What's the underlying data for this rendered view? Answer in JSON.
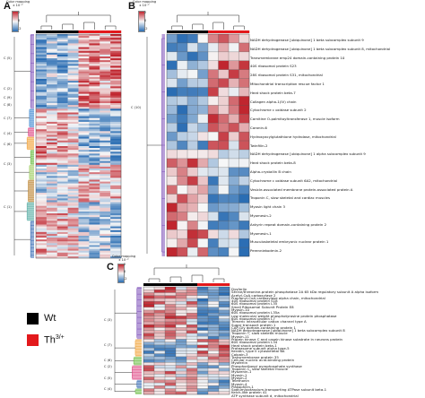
{
  "panels": {
    "A": {
      "letter": "A",
      "color_title": "Color mapping",
      "color_subtitle": "x 10⁻²",
      "cb_ticks": [
        "2",
        "0",
        "-2"
      ],
      "clusters": [
        {
          "label": "C (5)",
          "color": "#7b4fb8"
        },
        {
          "label": "C (2)",
          "color": "#4a8fd4"
        },
        {
          "label": "C (9)",
          "color": "#e0508a"
        },
        {
          "label": "C (8)",
          "color": "#f2a640"
        },
        {
          "label": "C (7)",
          "color": "#6fbf4a"
        },
        {
          "label": "C (4)",
          "color": "#a4d06a"
        },
        {
          "label": "C (6)",
          "color": "#bf8a3c"
        },
        {
          "label": "C (3)",
          "color": "#5fb0a8"
        },
        {
          "label": "C (1)",
          "color": "#3d6fb6"
        }
      ]
    },
    "B": {
      "letter": "B",
      "color_title": "Color mapping",
      "color_subtitle": "x 10⁻²",
      "cb_ticks": [
        "2",
        "0",
        "-2"
      ],
      "clusters": [
        {
          "label": "C (10)",
          "color": "#7b4fb8"
        }
      ],
      "genes": [
        "NADH dehydrogenase [ubiquinone] 1 beta subcomplex subunit 9",
        "NADH dehydrogenase [ubiquinone] 1 beta subcomplex subunit 8, mitochondrial",
        "Transmembrane emp24 domain-containing protein 10",
        "40S ribosomal protein S23",
        "28S ribosomal protein S31, mitochondrial",
        "Mitochondrial transcription rescue factor 1",
        "Heat shock protein beta-7",
        "Collagen alpha-1(IV) chain",
        "Cytochrome c oxidase subunit 2",
        "Carnitine O-palmitoyltransferase 1, muscle isoform",
        "Coronin-6",
        "Hydroxyacylglutathione hydrolase, mitochondrial",
        "Twinfilin-2",
        "NADH dehydrogenase [ubiquinone] 1 alpha subcomplex subunit 9",
        "Heat shock protein beta-8",
        "Alpha-crystallin B chain",
        "Cytochrome c oxidase subunit 6A2, mitochondrial",
        "Vesicle-associated membrane protein-associated protein A",
        "Troponin C, slow skeletal and cardiac muscles",
        "Myosin light chain 3",
        "Myomesin-2",
        "Ankyrin repeat domain-containing protein 2",
        "Myomesin-1",
        "Musculoskeletal embryonic nuclear protein 1",
        "Perenniekodmin-2"
      ]
    },
    "C": {
      "letter": "C",
      "color_title": "Color mapping",
      "color_subtitle": "x 10⁻²",
      "cb_ticks": [
        "2",
        "0",
        "-2"
      ],
      "clusters": [
        {
          "label": "C (3)",
          "color": "#7b4fb8"
        },
        {
          "label": "C (7)",
          "color": "#f2a640"
        },
        {
          "label": "C (6)",
          "color": "#6fbf4a"
        },
        {
          "label": "C (2)",
          "color": "#e0508a"
        },
        {
          "label": "C (5)",
          "color": "#3d6fb6"
        },
        {
          "label": "C (4)",
          "color": "#6fbf4a"
        }
      ],
      "genes": [
        "Dysferlin",
        "Serine/threonine-protein phosphatase 2A 65 kDa regulatory subunit A alpha isoform",
        "Acetyl-CoA carboxylase 2",
        "Propionyl-CoA carboxylase alpha chain, mitochondrial",
        "40S ribosomal protein S18",
        "60S ribosomal protein L35",
        "Small Ribosomal Subunit Protein E8",
        "Myosin-10",
        "60S ribosomal protein L35a",
        "Low molecular weight phosphotyrosine protein phosphatase",
        "60S ribosomal protein L7",
        "Trimeric intracellular cation channel type A",
        "Sugar transport protein 1",
        "CAP-Gly domain-containing protein 1",
        "NADH dehydrogenase [ubiquinone] 1 beta subcomplex subunit 8",
        "Troponin T, slow skeletal muscle",
        "Myosin-11",
        "Protein kinase C and casein kinase substrate in neurons protein",
        "60S ribosomal protein L34",
        "Heat shock protein beta-1",
        "Proteasome subunit alpha type-5",
        "Keratin, type II cytoskeletal 6A",
        "Calpain-3",
        "Transmembrane protein 35",
        "Cellular nucleic acid-binding protein",
        "Myoferlin",
        "Phosphoribosyl pyrophosphate synthase",
        "Troponin C, slow skeletal muscle",
        "Myozenin-1",
        "Myosin-1",
        "Myosin-2",
        "Telethonin",
        "Myosin-4",
        "Plakophilin-1",
        "Sodium/potassium-transporting ATPase subunit beta-1",
        "Kelch-like protein 41",
        "ATP synthase subunit d, mitochondrial"
      ]
    }
  },
  "legend": [
    {
      "label": "Wt",
      "color": "#000000",
      "sup": ""
    },
    {
      "label": "Th",
      "color": "#e3191c",
      "sup": "3/+"
    }
  ],
  "heat_colors": {
    "high": "#c0262f",
    "mid": "#f7f7f7",
    "low": "#2a6db3"
  },
  "group_colors": {
    "wt": "#000000",
    "th": "#e3191c"
  }
}
